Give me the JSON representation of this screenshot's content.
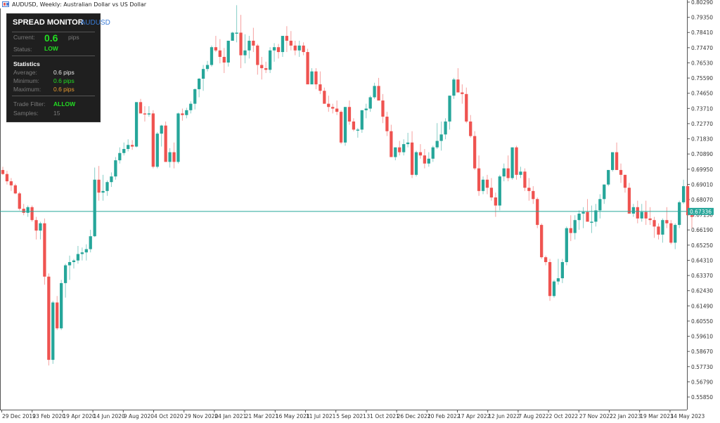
{
  "window": {
    "title": "AUDUSD, Weekly:  Australian Dollar vs US Dollar"
  },
  "spread_monitor": {
    "title": "SPREAD MONITOR",
    "symbol": "AUDUSD",
    "current_label": "Current:",
    "current_value": "0.6",
    "current_unit": "pips",
    "status_label": "Status:",
    "status_value": "LOW",
    "statistics_heading": "Statistics",
    "average_label": "Average:",
    "average_value": "0.6 pips",
    "minimum_label": "Minimum:",
    "minimum_value": "0.6 pips",
    "maximum_label": "Maximum:",
    "maximum_value": "0.6 pips",
    "trade_filter_label": "Trade Filter:",
    "trade_filter_value": "ALLOW",
    "samples_label": "Samples:",
    "samples_value": "15"
  },
  "colors": {
    "bull": "#26a69a",
    "bear": "#ef5350",
    "price_line": "#26a69a",
    "axis": "#555555"
  },
  "chart_data": {
    "type": "candlestick",
    "title": "AUDUSD, Weekly: Australian Dollar vs US Dollar",
    "xlabel": "",
    "ylabel": "",
    "ylim": [
      0.554,
      0.8035
    ],
    "grid": false,
    "current_price": "0.67336",
    "y_ticks": [
      "0.80290",
      "0.79350",
      "0.78410",
      "0.77470",
      "0.76530",
      "0.75590",
      "0.74650",
      "0.73710",
      "0.72770",
      "0.71830",
      "0.70890",
      "0.69950",
      "0.69010",
      "0.68070",
      "0.67130",
      "0.66190",
      "0.65250",
      "0.64310",
      "0.63370",
      "0.62430",
      "0.61490",
      "0.60550",
      "0.59610",
      "0.58670",
      "0.57730",
      "0.56790",
      "0.55850"
    ],
    "x_ticks": [
      "29 Dec 2019",
      "23 Feb 2020",
      "19 Apr 2020",
      "14 Jun 2020",
      "9 Aug 2020",
      "4 Oct 2020",
      "29 Nov 2020",
      "24 Jan 2021",
      "21 Mar 2021",
      "16 May 2021",
      "11 Jul 2021",
      "5 Sep 2021",
      "31 Oct 2021",
      "26 Dec 2021",
      "20 Feb 2022",
      "17 Apr 2022",
      "12 Jun 2022",
      "7 Aug 2022",
      "2 Oct 2022",
      "27 Nov 2022",
      "22 Jan 2023",
      "19 Mar 2023",
      "14 May 2023"
    ],
    "candles_ohlc": [
      [
        0.699,
        0.701,
        0.696,
        0.6965
      ],
      [
        0.6965,
        0.6985,
        0.69,
        0.692
      ],
      [
        0.692,
        0.694,
        0.686,
        0.6895
      ],
      [
        0.6895,
        0.6905,
        0.684,
        0.6845
      ],
      [
        0.6845,
        0.6855,
        0.674,
        0.675
      ],
      [
        0.675,
        0.678,
        0.671,
        0.6725
      ],
      [
        0.6725,
        0.677,
        0.67,
        0.676
      ],
      [
        0.676,
        0.677,
        0.667,
        0.668
      ],
      [
        0.668,
        0.67,
        0.656,
        0.6615
      ],
      [
        0.6615,
        0.667,
        0.656,
        0.666
      ],
      [
        0.666,
        0.669,
        0.628,
        0.633
      ],
      [
        0.633,
        0.635,
        0.578,
        0.5815
      ],
      [
        0.5815,
        0.618,
        0.579,
        0.617
      ],
      [
        0.617,
        0.621,
        0.6,
        0.601
      ],
      [
        0.601,
        0.631,
        0.6,
        0.629
      ],
      [
        0.629,
        0.641,
        0.62,
        0.64
      ],
      [
        0.64,
        0.646,
        0.631,
        0.642
      ],
      [
        0.642,
        0.644,
        0.638,
        0.643
      ],
      [
        0.643,
        0.652,
        0.641,
        0.647
      ],
      [
        0.647,
        0.651,
        0.643,
        0.648
      ],
      [
        0.648,
        0.653,
        0.643,
        0.65
      ],
      [
        0.65,
        0.662,
        0.648,
        0.658
      ],
      [
        0.658,
        0.7005,
        0.6575,
        0.693
      ],
      [
        0.693,
        0.7015,
        0.68,
        0.685
      ],
      [
        0.685,
        0.696,
        0.68,
        0.686
      ],
      [
        0.686,
        0.6925,
        0.683,
        0.6915
      ],
      [
        0.6915,
        0.6975,
        0.6885,
        0.695
      ],
      [
        0.695,
        0.707,
        0.693,
        0.705
      ],
      [
        0.705,
        0.713,
        0.703,
        0.7095
      ],
      [
        0.7095,
        0.716,
        0.708,
        0.712
      ],
      [
        0.712,
        0.718,
        0.7105,
        0.7145
      ],
      [
        0.7145,
        0.7175,
        0.7115,
        0.7135
      ],
      [
        0.7135,
        0.741,
        0.713,
        0.741
      ],
      [
        0.741,
        0.743,
        0.734,
        0.734
      ],
      [
        0.734,
        0.7385,
        0.729,
        0.7335
      ],
      [
        0.7335,
        0.7385,
        0.732,
        0.734
      ],
      [
        0.734,
        0.736,
        0.7,
        0.701
      ],
      [
        0.701,
        0.7225,
        0.7,
        0.7215
      ],
      [
        0.7215,
        0.727,
        0.7135,
        0.7265
      ],
      [
        0.7265,
        0.729,
        0.704,
        0.704
      ],
      [
        0.704,
        0.7125,
        0.7005,
        0.71
      ],
      [
        0.71,
        0.716,
        0.7,
        0.704
      ],
      [
        0.704,
        0.7345,
        0.703,
        0.734
      ],
      [
        0.734,
        0.737,
        0.7295,
        0.733
      ],
      [
        0.733,
        0.7375,
        0.731,
        0.736
      ],
      [
        0.736,
        0.7415,
        0.734,
        0.74
      ],
      [
        0.74,
        0.7495,
        0.7365,
        0.749
      ],
      [
        0.749,
        0.756,
        0.744,
        0.7555
      ],
      [
        0.7555,
        0.764,
        0.748,
        0.7615
      ],
      [
        0.7615,
        0.7665,
        0.76,
        0.764
      ],
      [
        0.764,
        0.776,
        0.763,
        0.775
      ],
      [
        0.775,
        0.782,
        0.772,
        0.773
      ],
      [
        0.773,
        0.78,
        0.765,
        0.769
      ],
      [
        0.769,
        0.7745,
        0.759,
        0.7655
      ],
      [
        0.7655,
        0.779,
        0.763,
        0.779
      ],
      [
        0.779,
        0.7845,
        0.779,
        0.784
      ],
      [
        0.784,
        0.801,
        0.778,
        0.784
      ],
      [
        0.784,
        0.795,
        0.762,
        0.77
      ],
      [
        0.77,
        0.783,
        0.765,
        0.773
      ],
      [
        0.773,
        0.782,
        0.768,
        0.779
      ],
      [
        0.779,
        0.787,
        0.772,
        0.776
      ],
      [
        0.776,
        0.777,
        0.758,
        0.764
      ],
      [
        0.764,
        0.769,
        0.755,
        0.762
      ],
      [
        0.762,
        0.766,
        0.759,
        0.761
      ],
      [
        0.761,
        0.775,
        0.759,
        0.773
      ],
      [
        0.773,
        0.7775,
        0.766,
        0.775
      ],
      [
        0.775,
        0.777,
        0.768,
        0.772
      ],
      [
        0.772,
        0.781,
        0.769,
        0.782
      ],
      [
        0.782,
        0.788,
        0.772,
        0.779
      ],
      [
        0.779,
        0.785,
        0.773,
        0.776
      ],
      [
        0.776,
        0.779,
        0.77,
        0.773
      ],
      [
        0.773,
        0.779,
        0.769,
        0.776
      ],
      [
        0.776,
        0.778,
        0.77,
        0.772
      ],
      [
        0.772,
        0.774,
        0.752,
        0.752
      ],
      [
        0.752,
        0.762,
        0.752,
        0.76
      ],
      [
        0.76,
        0.762,
        0.749,
        0.752
      ],
      [
        0.752,
        0.76,
        0.746,
        0.748
      ],
      [
        0.748,
        0.75,
        0.74,
        0.74
      ],
      [
        0.74,
        0.745,
        0.735,
        0.738
      ],
      [
        0.738,
        0.74,
        0.734,
        0.737
      ],
      [
        0.737,
        0.742,
        0.733,
        0.735
      ],
      [
        0.735,
        0.736,
        0.715,
        0.716
      ],
      [
        0.716,
        0.738,
        0.714,
        0.738
      ],
      [
        0.738,
        0.742,
        0.727,
        0.729
      ],
      [
        0.729,
        0.731,
        0.723,
        0.724
      ],
      [
        0.724,
        0.725,
        0.719,
        0.724
      ],
      [
        0.724,
        0.736,
        0.722,
        0.736
      ],
      [
        0.736,
        0.74,
        0.731,
        0.737
      ],
      [
        0.737,
        0.745,
        0.735,
        0.744
      ],
      [
        0.744,
        0.753,
        0.743,
        0.751
      ],
      [
        0.751,
        0.756,
        0.742,
        0.742
      ],
      [
        0.742,
        0.746,
        0.728,
        0.732
      ],
      [
        0.732,
        0.735,
        0.72,
        0.723
      ],
      [
        0.723,
        0.727,
        0.707,
        0.707
      ],
      [
        0.707,
        0.713,
        0.705,
        0.713
      ],
      [
        0.713,
        0.717,
        0.708,
        0.71
      ],
      [
        0.71,
        0.718,
        0.708,
        0.715
      ],
      [
        0.715,
        0.722,
        0.713,
        0.716
      ],
      [
        0.716,
        0.723,
        0.694,
        0.696
      ],
      [
        0.696,
        0.711,
        0.695,
        0.71
      ],
      [
        0.71,
        0.715,
        0.706,
        0.708
      ],
      [
        0.708,
        0.712,
        0.7,
        0.703
      ],
      [
        0.703,
        0.71,
        0.701,
        0.706
      ],
      [
        0.706,
        0.714,
        0.704,
        0.713
      ],
      [
        0.713,
        0.728,
        0.712,
        0.717
      ],
      [
        0.717,
        0.729,
        0.711,
        0.721
      ],
      [
        0.721,
        0.731,
        0.718,
        0.729
      ],
      [
        0.729,
        0.745,
        0.724,
        0.745
      ],
      [
        0.745,
        0.756,
        0.743,
        0.755
      ],
      [
        0.755,
        0.762,
        0.749,
        0.747
      ],
      [
        0.747,
        0.752,
        0.74,
        0.746
      ],
      [
        0.746,
        0.75,
        0.728,
        0.729
      ],
      [
        0.729,
        0.733,
        0.719,
        0.72
      ],
      [
        0.72,
        0.723,
        0.699,
        0.7
      ],
      [
        0.7,
        0.708,
        0.683,
        0.686
      ],
      [
        0.686,
        0.695,
        0.684,
        0.693
      ],
      [
        0.693,
        0.696,
        0.684,
        0.688
      ],
      [
        0.688,
        0.694,
        0.68,
        0.682
      ],
      [
        0.682,
        0.685,
        0.67,
        0.677
      ],
      [
        0.677,
        0.696,
        0.674,
        0.695
      ],
      [
        0.695,
        0.703,
        0.692,
        0.7
      ],
      [
        0.7,
        0.708,
        0.692,
        0.694
      ],
      [
        0.694,
        0.713,
        0.693,
        0.713
      ],
      [
        0.713,
        0.714,
        0.693,
        0.696
      ],
      [
        0.696,
        0.701,
        0.694,
        0.698
      ],
      [
        0.698,
        0.7,
        0.686,
        0.688
      ],
      [
        0.688,
        0.694,
        0.68,
        0.686
      ],
      [
        0.686,
        0.689,
        0.678,
        0.681
      ],
      [
        0.681,
        0.682,
        0.663,
        0.665
      ],
      [
        0.665,
        0.666,
        0.644,
        0.645
      ],
      [
        0.645,
        0.646,
        0.64,
        0.642
      ],
      [
        0.642,
        0.644,
        0.618,
        0.621
      ],
      [
        0.621,
        0.631,
        0.62,
        0.63
      ],
      [
        0.63,
        0.644,
        0.628,
        0.632
      ],
      [
        0.632,
        0.644,
        0.629,
        0.642
      ],
      [
        0.642,
        0.664,
        0.64,
        0.663
      ],
      [
        0.663,
        0.671,
        0.655,
        0.66
      ],
      [
        0.66,
        0.671,
        0.656,
        0.668
      ],
      [
        0.668,
        0.674,
        0.662,
        0.672
      ],
      [
        0.672,
        0.676,
        0.663,
        0.673
      ],
      [
        0.673,
        0.681,
        0.667,
        0.667
      ],
      [
        0.667,
        0.677,
        0.66,
        0.667
      ],
      [
        0.667,
        0.678,
        0.664,
        0.674
      ],
      [
        0.674,
        0.684,
        0.669,
        0.681
      ],
      [
        0.681,
        0.69,
        0.678,
        0.69
      ],
      [
        0.69,
        0.699,
        0.689,
        0.699
      ],
      [
        0.699,
        0.709,
        0.698,
        0.71
      ],
      [
        0.71,
        0.716,
        0.699,
        0.699
      ],
      [
        0.699,
        0.703,
        0.691,
        0.696
      ],
      [
        0.696,
        0.696,
        0.685,
        0.688
      ],
      [
        0.688,
        0.691,
        0.672,
        0.672
      ],
      [
        0.672,
        0.678,
        0.67,
        0.676
      ],
      [
        0.676,
        0.68,
        0.666,
        0.669
      ],
      [
        0.669,
        0.678,
        0.667,
        0.673
      ],
      [
        0.673,
        0.68,
        0.665,
        0.669
      ],
      [
        0.669,
        0.676,
        0.665,
        0.668
      ],
      [
        0.668,
        0.67,
        0.657,
        0.664
      ],
      [
        0.664,
        0.666,
        0.656,
        0.659
      ],
      [
        0.659,
        0.669,
        0.654,
        0.668
      ],
      [
        0.668,
        0.676,
        0.663,
        0.666
      ],
      [
        0.666,
        0.668,
        0.653,
        0.654
      ],
      [
        0.654,
        0.666,
        0.65,
        0.665
      ],
      [
        0.665,
        0.68,
        0.663,
        0.679
      ],
      [
        0.679,
        0.693,
        0.678,
        0.689
      ],
      [
        0.689,
        0.69,
        0.671,
        0.671
      ],
      [
        0.671,
        0.674,
        0.663,
        0.67
      ]
    ]
  }
}
